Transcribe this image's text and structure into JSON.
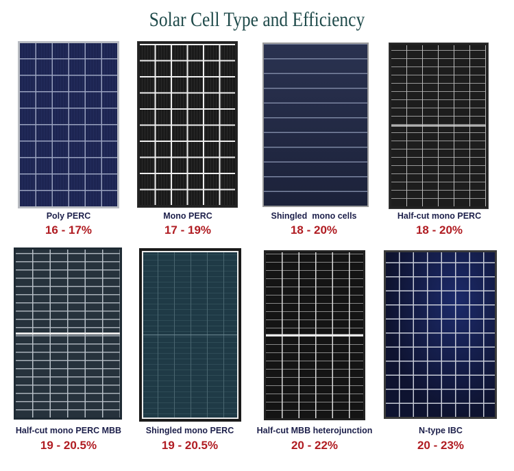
{
  "title": "Solar Cell Type and Efficiency",
  "cells": [
    {
      "name": "Poly PERC",
      "efficiency": "16 - 17%"
    },
    {
      "name": "Mono PERC",
      "efficiency": "17 - 19%"
    },
    {
      "name": "Shingled  mono cells",
      "efficiency": "18 - 20%"
    },
    {
      "name": "Half-cut mono PERC",
      "efficiency": "18 - 20%"
    },
    {
      "name": "Half-cut mono PERC MBB",
      "efficiency": "19 - 20.5%"
    },
    {
      "name": "Shingled mono PERC",
      "efficiency": "19 - 20.5%"
    },
    {
      "name": "Half-cut MBB heterojunction",
      "efficiency": "20 - 22%"
    },
    {
      "name": "N-type IBC",
      "efficiency": "20 - 23%"
    }
  ],
  "colors": {
    "title": "#1f4a4a",
    "name": "#1c1f4a",
    "efficiency": "#b01c22"
  }
}
